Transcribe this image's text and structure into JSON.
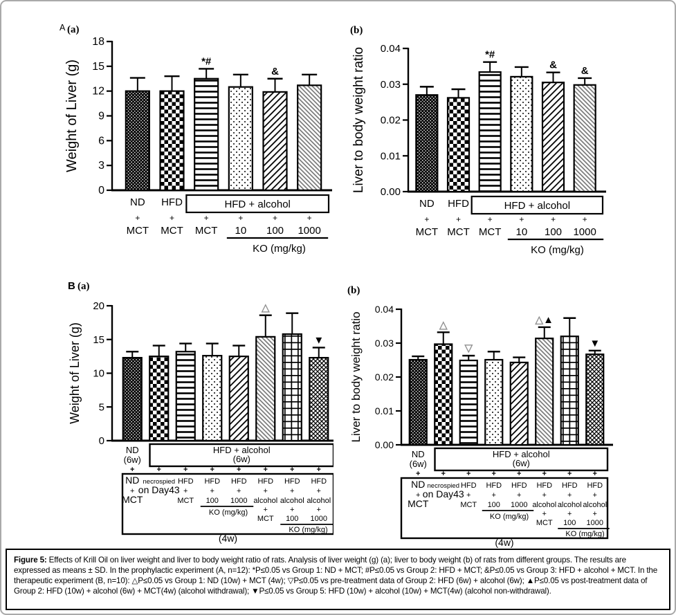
{
  "figure": {
    "caption_prefix": "Figure 5:",
    "caption_text": " Effects of Krill Oil on liver weight and liver to body weight ratio of rats. Analysis of liver weight (g) (a); liver to body weight (b) of rats from different groups. The results are expressed as means ± SD. In the prophylactic experiment (A, n=12): *P≤0.05 vs Group 1: ND + MCT; #P≤0.05 vs Group 2: HFD + MCT; &P≤0.05 vs Group 3: HFD + alcohol + MCT. In the therapeutic experiment (B, n=10): △P≤0.05 vs Group 1: ND (10w) + MCT (4w); ▽P≤0.05 vs pre-treatment data of Group 2: HFD (6w) + alcohol (6w); ▲P≤0.05 vs post-treatment data of Group 2: HFD (10w) + alcohol (6w) + MCT(4w) (alcohol withdrawal); ▼P≤0.05 vs Group 5: HFD (10w) + alcohol (10w) + MCT(4w) (alcohol non-withdrawal)."
  },
  "chart_data": [
    {
      "id": "Aa",
      "type": "bar",
      "panel_label": "A(a)",
      "ylabel": "Weight of Liver (g)",
      "ylim": [
        0,
        18
      ],
      "yticks": [
        {
          "v": 0,
          "label": "0"
        },
        {
          "v": 3,
          "label": "3"
        },
        {
          "v": 6,
          "label": "6"
        },
        {
          "v": 9,
          "label": "9"
        },
        {
          "v": 12,
          "label": "12"
        },
        {
          "v": 15,
          "label": "15"
        },
        {
          "v": 18,
          "label": "18"
        }
      ],
      "values": [
        12.0,
        12.0,
        13.5,
        12.5,
        11.9,
        12.7
      ],
      "err_top": [
        13.6,
        13.8,
        14.7,
        14.0,
        13.5,
        14.0
      ],
      "patterns": [
        "dense-dots",
        "checker",
        "hlines",
        "dots",
        "diag-up",
        "diag-down"
      ],
      "symbols": [
        "",
        "",
        "*#",
        "",
        "&",
        ""
      ],
      "xaxis": {
        "type": "A",
        "col_labels_top": [
          "ND",
          "HFD"
        ],
        "group_box_label": "HFD + alcohol",
        "plus": "+",
        "col_labels_bottom": [
          "MCT",
          "MCT",
          "MCT",
          "10",
          "100",
          "1000"
        ],
        "ko_label": "KO (mg/kg)"
      }
    },
    {
      "id": "Ab",
      "type": "bar",
      "panel_label": "(b)",
      "ylabel": "Liver to body weight ratio",
      "ylim": [
        0,
        0.04
      ],
      "yticks": [
        {
          "v": 0,
          "label": "0.00"
        },
        {
          "v": 0.01,
          "label": "0.01"
        },
        {
          "v": 0.02,
          "label": "0.02"
        },
        {
          "v": 0.03,
          "label": "0.03"
        },
        {
          "v": 0.04,
          "label": "0.04"
        }
      ],
      "values": [
        0.027,
        0.0262,
        0.0334,
        0.0321,
        0.0305,
        0.0298
      ],
      "err_top": [
        0.0293,
        0.0286,
        0.0362,
        0.0348,
        0.0333,
        0.0317
      ],
      "patterns": [
        "dense-dots",
        "checker",
        "hlines",
        "dots",
        "diag-up",
        "diag-down"
      ],
      "symbols": [
        "",
        "",
        "*#",
        "",
        "&",
        "&"
      ],
      "xaxis": {
        "type": "A",
        "col_labels_top": [
          "ND",
          "HFD"
        ],
        "group_box_label": "HFD + alcohol",
        "plus": "+",
        "col_labels_bottom": [
          "MCT",
          "MCT",
          "MCT",
          "10",
          "100",
          "1000"
        ],
        "ko_label": "KO (mg/kg)"
      }
    },
    {
      "id": "Ba",
      "type": "bar",
      "panel_label": "B(a)",
      "ylabel": "Weight of Liver (g)",
      "ylim": [
        0,
        20
      ],
      "yticks": [
        {
          "v": 0,
          "label": "0"
        },
        {
          "v": 5,
          "label": "5"
        },
        {
          "v": 10,
          "label": "10"
        },
        {
          "v": 15,
          "label": "15"
        },
        {
          "v": 20,
          "label": "20"
        }
      ],
      "values": [
        12.3,
        12.5,
        13.2,
        12.6,
        12.5,
        15.4,
        15.8,
        12.3
      ],
      "err_top": [
        13.2,
        14.1,
        14.4,
        14.4,
        14.1,
        18.6,
        18.9,
        13.8
      ],
      "patterns": [
        "dense-dots",
        "checker",
        "hlines",
        "dots",
        "diag-up",
        "diag-down",
        "grid",
        "diag-cross"
      ],
      "symbols": [
        "",
        "",
        "",
        "",
        "",
        "△",
        "",
        "▼"
      ],
      "xaxis": {
        "type": "B",
        "first_col_label": [
          "ND",
          "(6w)"
        ],
        "group_box_lines": [
          "HFD + alcohol",
          "(6w)"
        ],
        "plus": "+",
        "treatment": {
          "row1": [
            "ND",
            "necrospied",
            "HFD",
            "HFD",
            "HFD",
            "HFD",
            "HFD",
            "HFD"
          ],
          "row2": [
            "+",
            "on Day43",
            "+",
            "+",
            "+",
            "+",
            "+",
            "+"
          ],
          "row3": [
            "MCT",
            "",
            "MCT",
            "100",
            "1000",
            "alcohol",
            "alcohol",
            "alcohol"
          ],
          "row4_plus_cols": [
            "",
            "",
            "",
            "",
            "",
            "+",
            "+",
            "+"
          ],
          "row5": [
            "",
            "",
            "",
            "",
            "",
            "MCT",
            "100",
            "1000"
          ],
          "ko_label_1": "KO (mg/kg)",
          "ko_label_2": "KO (mg/kg)",
          "duration": "(4w)"
        }
      }
    },
    {
      "id": "Bb",
      "type": "bar",
      "panel_label": "(b)",
      "ylabel": "Liver to body weight ratio",
      "ylim": [
        0,
        0.04
      ],
      "yticks": [
        {
          "v": 0,
          "label": "0.00"
        },
        {
          "v": 0.01,
          "label": "0.01"
        },
        {
          "v": 0.02,
          "label": "0.02"
        },
        {
          "v": 0.03,
          "label": "0.03"
        },
        {
          "v": 0.04,
          "label": "0.04"
        }
      ],
      "values": [
        0.0251,
        0.0297,
        0.0249,
        0.0251,
        0.0243,
        0.0314,
        0.032,
        0.0267
      ],
      "err_top": [
        0.0261,
        0.0332,
        0.0263,
        0.0275,
        0.0258,
        0.0347,
        0.0374,
        0.0278
      ],
      "patterns": [
        "dense-dots",
        "checker",
        "hlines",
        "dots",
        "diag-up",
        "diag-down",
        "grid",
        "diag-cross"
      ],
      "symbols": [
        "",
        "△",
        "▽",
        "",
        "",
        "△▲",
        "",
        "▼"
      ],
      "xaxis": {
        "type": "B",
        "first_col_label": [
          "ND",
          "(6w)"
        ],
        "group_box_lines": [
          "HFD + alcohol",
          "(6w)"
        ],
        "plus": "+",
        "treatment": {
          "row1": [
            "ND",
            "necrospied",
            "HFD",
            "HFD",
            "HFD",
            "HFD",
            "HFD",
            "HFD"
          ],
          "row2": [
            "+",
            "on Day43",
            "+",
            "+",
            "+",
            "+",
            "+",
            "+"
          ],
          "row3": [
            "MCT",
            "",
            "MCT",
            "100",
            "1000",
            "alcohol",
            "alcohol",
            "alcohol"
          ],
          "row4_plus_cols": [
            "",
            "",
            "",
            "",
            "",
            "+",
            "+",
            "+"
          ],
          "row5": [
            "",
            "",
            "",
            "",
            "",
            "MCT",
            "100",
            "1000"
          ],
          "ko_label_1": "KO (mg/kg)",
          "ko_label_2": "KO (mg/kg)",
          "duration": "(4w)"
        }
      }
    }
  ],
  "colors": {
    "ink": "#000000",
    "open_triangle": "#8f8f8f",
    "hatch_gray": "#787878"
  }
}
